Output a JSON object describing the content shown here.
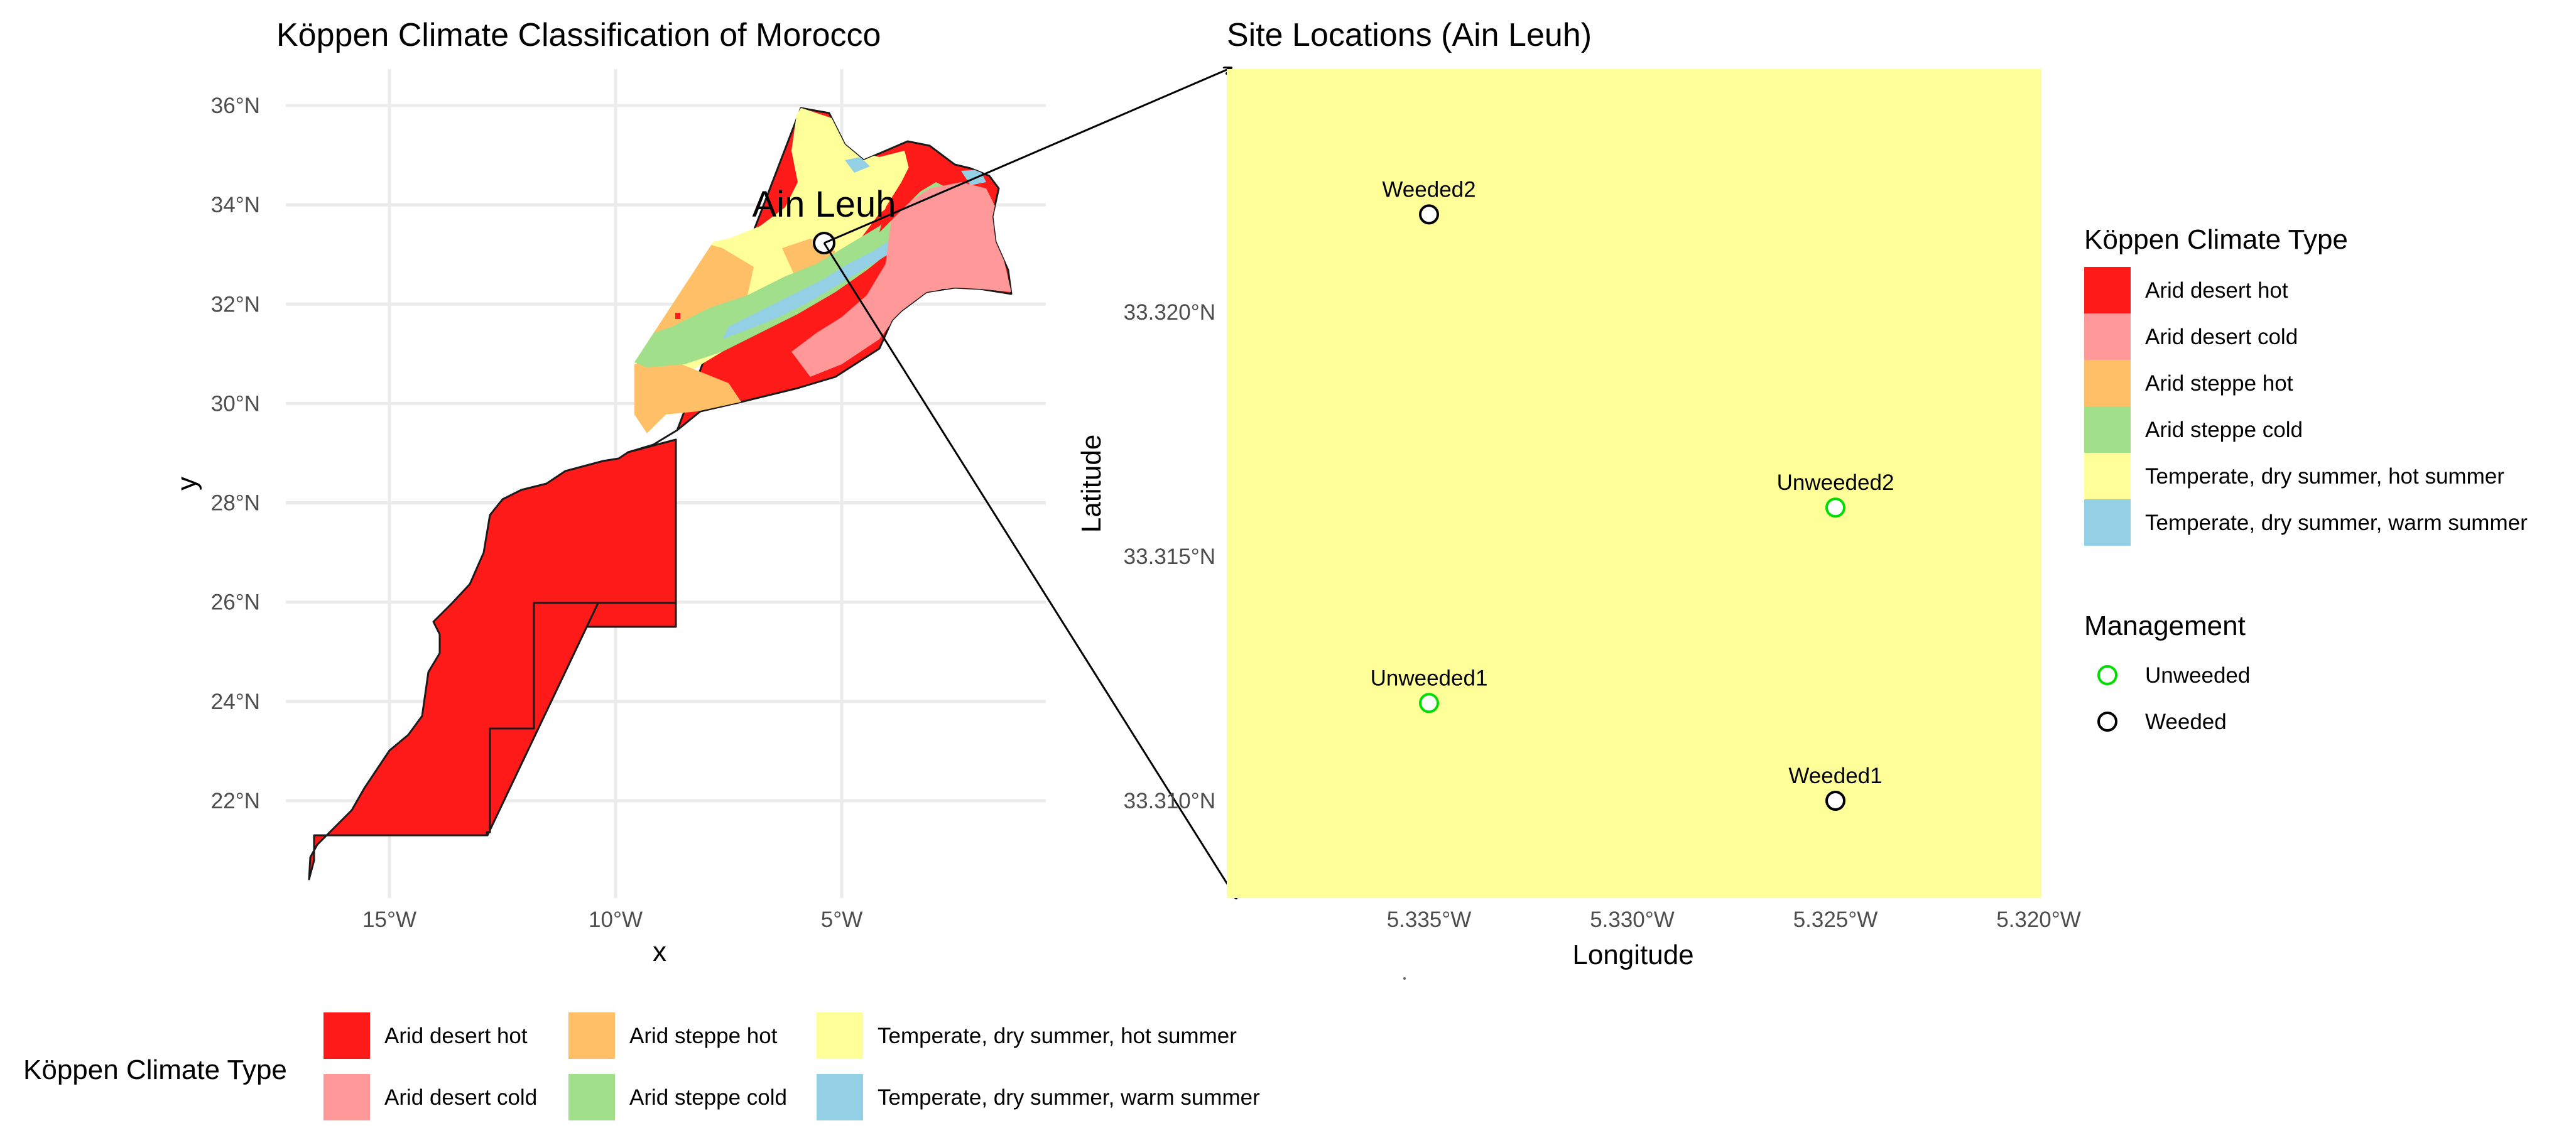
{
  "left_map": {
    "title": "Köppen Climate Classification of Morocco",
    "x_label": "x",
    "y_label": "y",
    "x_ticks": [
      "15°W",
      "10°W",
      "5°W"
    ],
    "y_ticks": [
      "36°N",
      "34°N",
      "32°N",
      "30°N",
      "28°N",
      "26°N",
      "24°N",
      "22°N"
    ],
    "x_tick_values": [
      -15,
      -10,
      -5
    ],
    "y_tick_values": [
      36,
      34,
      32,
      30,
      28,
      26,
      24,
      22
    ],
    "site_label": "Ain Leuh",
    "site_lon": -5.33,
    "site_lat": 33.3
  },
  "right_map": {
    "title": "Site Locations (Ain Leuh)",
    "x_label": "Longitude",
    "y_label": "Latitude",
    "x_ticks": [
      "5.335°W",
      "5.330°W",
      "5.325°W",
      "5.320°W"
    ],
    "y_ticks": [
      "33.320°N",
      "33.315°N",
      "33.310°N"
    ],
    "background_color": "#ffff99",
    "sites": [
      {
        "name": "Weeded2",
        "lon": -5.335,
        "lat": 33.322,
        "management": "Weeded"
      },
      {
        "name": "Unweeded2",
        "lon": -5.325,
        "lat": 33.316,
        "management": "Unweeded"
      },
      {
        "name": "Unweeded1",
        "lon": -5.335,
        "lat": 33.312,
        "management": "Unweeded"
      },
      {
        "name": "Weeded1",
        "lon": -5.325,
        "lat": 33.31,
        "management": "Weeded"
      }
    ]
  },
  "climate_legend": {
    "title": "Köppen Climate Type",
    "items": [
      {
        "label": "Arid desert hot",
        "color": "#ff1a1a"
      },
      {
        "label": "Arid desert cold",
        "color": "#ff9999"
      },
      {
        "label": "Arid steppe hot",
        "color": "#ffbf66"
      },
      {
        "label": "Arid steppe cold",
        "color": "#a1df8a"
      },
      {
        "label": "Temperate, dry summer, hot summer",
        "color": "#ffff99"
      },
      {
        "label": "Temperate, dry summer, warm summer",
        "color": "#93d0e6"
      }
    ]
  },
  "management_legend": {
    "title": "Management",
    "items": [
      {
        "label": "Unweeded",
        "color": "#00dd00"
      },
      {
        "label": "Weeded",
        "color": "#000000"
      }
    ]
  },
  "bottom_legend": {
    "title": "Köppen Climate Type",
    "items": [
      {
        "label": "Arid desert hot",
        "color": "#ff1a1a"
      },
      {
        "label": "Arid steppe hot",
        "color": "#ffbf66"
      },
      {
        "label": "Temperate, dry summer, hot summer",
        "color": "#ffff99"
      },
      {
        "label": "Arid desert cold",
        "color": "#ff9999"
      },
      {
        "label": "Arid steppe cold",
        "color": "#a1df8a"
      },
      {
        "label": "Temperate, dry summer, warm summer",
        "color": "#93d0e6"
      }
    ]
  }
}
